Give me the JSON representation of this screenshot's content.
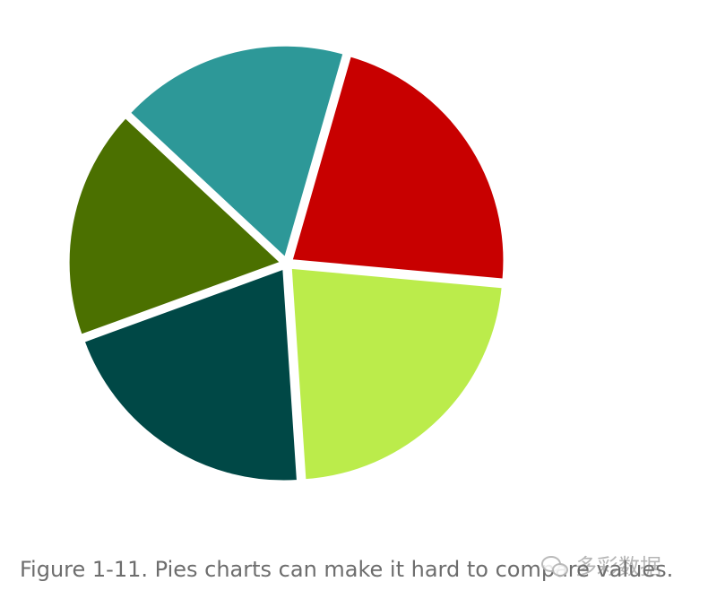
{
  "chart_data": {
    "type": "pie",
    "title": "",
    "slices": [
      {
        "value": 22.0,
        "color": "#c80000"
      },
      {
        "value": 22.5,
        "color": "#bbec4b"
      },
      {
        "value": 20.5,
        "color": "#004846"
      },
      {
        "value": 17.5,
        "color": "#4b7000"
      },
      {
        "value": 17.5,
        "color": "#2d9898"
      }
    ],
    "start_angle_deg": 16,
    "direction": "clockwise",
    "exploded": true
  },
  "caption": "Figure 1-11. Pies charts can make it hard to compare values.",
  "watermark": {
    "text": "多彩数据",
    "icon": "wechat-icon"
  }
}
